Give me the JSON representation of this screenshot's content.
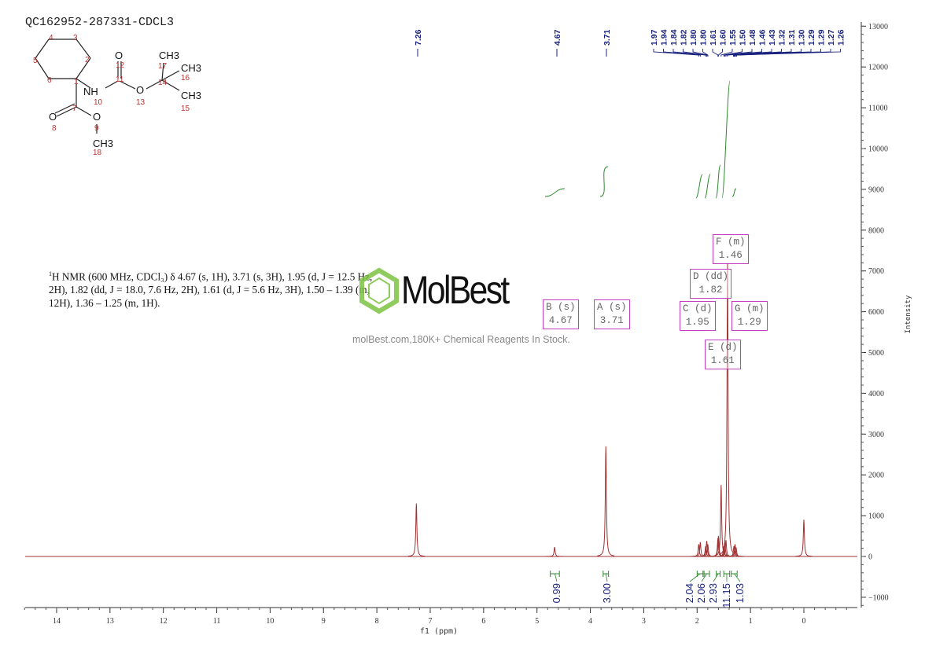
{
  "title": "QC162952-287331-CDCL3",
  "description": {
    "sup": "1",
    "text": "H NMR (600 MHz, CDCl₃) δ 4.67 (s, 1H), 3.71 (s, 3H), 1.95 (d, J = 12.5 Hz, 2H), 1.82 (dd, J = 18.0, 7.6 Hz, 2H), 1.61 (d, J = 5.6 Hz, 3H), 1.50 – 1.39 (m, 12H), 1.36 – 1.25 (m, 1H)."
  },
  "watermark": {
    "logo": "MolBest",
    "text": "molBest.com,180K+ Chemical Reagents In Stock."
  },
  "molecule": {
    "atoms": [
      "1",
      "2",
      "3",
      "4",
      "5",
      "6",
      "7",
      "8",
      "9",
      "10",
      "11",
      "12",
      "13",
      "14",
      "15",
      "16",
      "17",
      "18"
    ],
    "groups": {
      "nh": "NH",
      "o12": "O",
      "o13": "O",
      "o8": "O",
      "o9": "O",
      "ch3_17": "CH3",
      "ch3_16": "CH3",
      "ch3_15": "CH3",
      "ch3_18": "CH3"
    }
  },
  "multiplets": [
    {
      "label": "B (s)",
      "shift": "4.67"
    },
    {
      "label": "A (s)",
      "shift": "3.71"
    },
    {
      "label": "C (d)",
      "shift": "1.95"
    },
    {
      "label": "D (dd)",
      "shift": "1.82"
    },
    {
      "label": "E (d)",
      "shift": "1.61"
    },
    {
      "label": "F (m)",
      "shift": "1.46"
    },
    {
      "label": "G (m)",
      "shift": "1.29"
    }
  ],
  "chart_data": {
    "type": "line",
    "xlabel": "f1 (ppm)",
    "ylabel": "Intensity",
    "xlim": [
      14.6,
      -1.0
    ],
    "ylim": [
      -1300,
      13000
    ],
    "x_ticks": [
      "14",
      "13",
      "12",
      "11",
      "10",
      "9",
      "8",
      "7",
      "6",
      "5",
      "4",
      "3",
      "2",
      "1",
      "0"
    ],
    "y_ticks": [
      "13000",
      "12000",
      "11000",
      "10000",
      "9000",
      "8000",
      "7000",
      "6000",
      "5000",
      "4000",
      "3000",
      "2000",
      "1000",
      "0",
      "-1000"
    ],
    "peak_labels": [
      "7.26",
      "4.67",
      "3.71",
      "1.97",
      "1.94",
      "1.84",
      "1.82",
      "1.80",
      "1.80",
      "1.61",
      "1.60",
      "1.55",
      "1.50",
      "1.48",
      "1.46",
      "1.43",
      "1.32",
      "1.31",
      "1.30",
      "1.29",
      "1.29",
      "1.27",
      "1.26"
    ],
    "peaks": [
      {
        "ppm": 7.26,
        "intensity": 1300
      },
      {
        "ppm": 4.67,
        "intensity": 230
      },
      {
        "ppm": 3.71,
        "intensity": 2700
      },
      {
        "ppm": 1.97,
        "intensity": 300
      },
      {
        "ppm": 1.94,
        "intensity": 350
      },
      {
        "ppm": 1.84,
        "intensity": 250
      },
      {
        "ppm": 1.82,
        "intensity": 380
      },
      {
        "ppm": 1.8,
        "intensity": 300
      },
      {
        "ppm": 1.61,
        "intensity": 450
      },
      {
        "ppm": 1.6,
        "intensity": 500
      },
      {
        "ppm": 1.55,
        "intensity": 1750
      },
      {
        "ppm": 1.5,
        "intensity": 250
      },
      {
        "ppm": 1.48,
        "intensity": 350
      },
      {
        "ppm": 1.46,
        "intensity": 400
      },
      {
        "ppm": 1.43,
        "intensity": 7200
      },
      {
        "ppm": 1.31,
        "intensity": 250
      },
      {
        "ppm": 1.29,
        "intensity": 300
      },
      {
        "ppm": 1.27,
        "intensity": 220
      },
      {
        "ppm": 0.0,
        "intensity": 900
      }
    ],
    "integrals": [
      {
        "from": 4.75,
        "to": 4.58,
        "value": "0.99"
      },
      {
        "from": 3.76,
        "to": 3.66,
        "value": "3.00"
      },
      {
        "from": 2.0,
        "to": 1.89,
        "value": "2.04"
      },
      {
        "from": 1.87,
        "to": 1.77,
        "value": "2.06"
      },
      {
        "from": 1.64,
        "to": 1.57,
        "value": "2.93"
      },
      {
        "from": 1.5,
        "to": 1.39,
        "value": "11.15"
      },
      {
        "from": 1.36,
        "to": 1.25,
        "value": "1.03"
      }
    ],
    "colors": {
      "spectrum": "#a03030",
      "integral": "#2f8a2f",
      "peak_label": "#1a237e",
      "multiplet_box": "#c040c0"
    }
  }
}
